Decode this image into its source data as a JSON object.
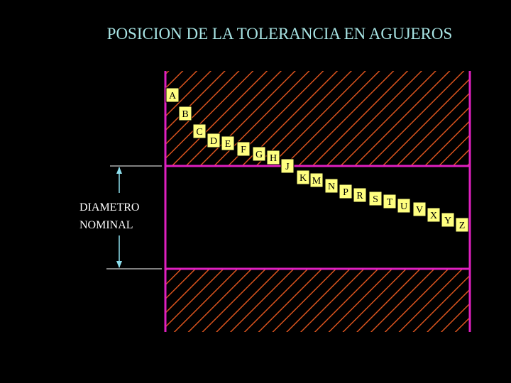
{
  "header": {
    "title": "POSICION DE LA TOLERANCIA EN AGUJEROS"
  },
  "dimension": {
    "label_lines": [
      "DIAMETRO",
      "NOMINAL"
    ]
  },
  "letters": [
    "A",
    "B",
    "C",
    "D",
    "E",
    "F",
    "G",
    "H",
    "J",
    "K",
    "M",
    "N",
    "P",
    "R",
    "S",
    "T",
    "U",
    "V",
    "X",
    "Y",
    "Z"
  ]
}
